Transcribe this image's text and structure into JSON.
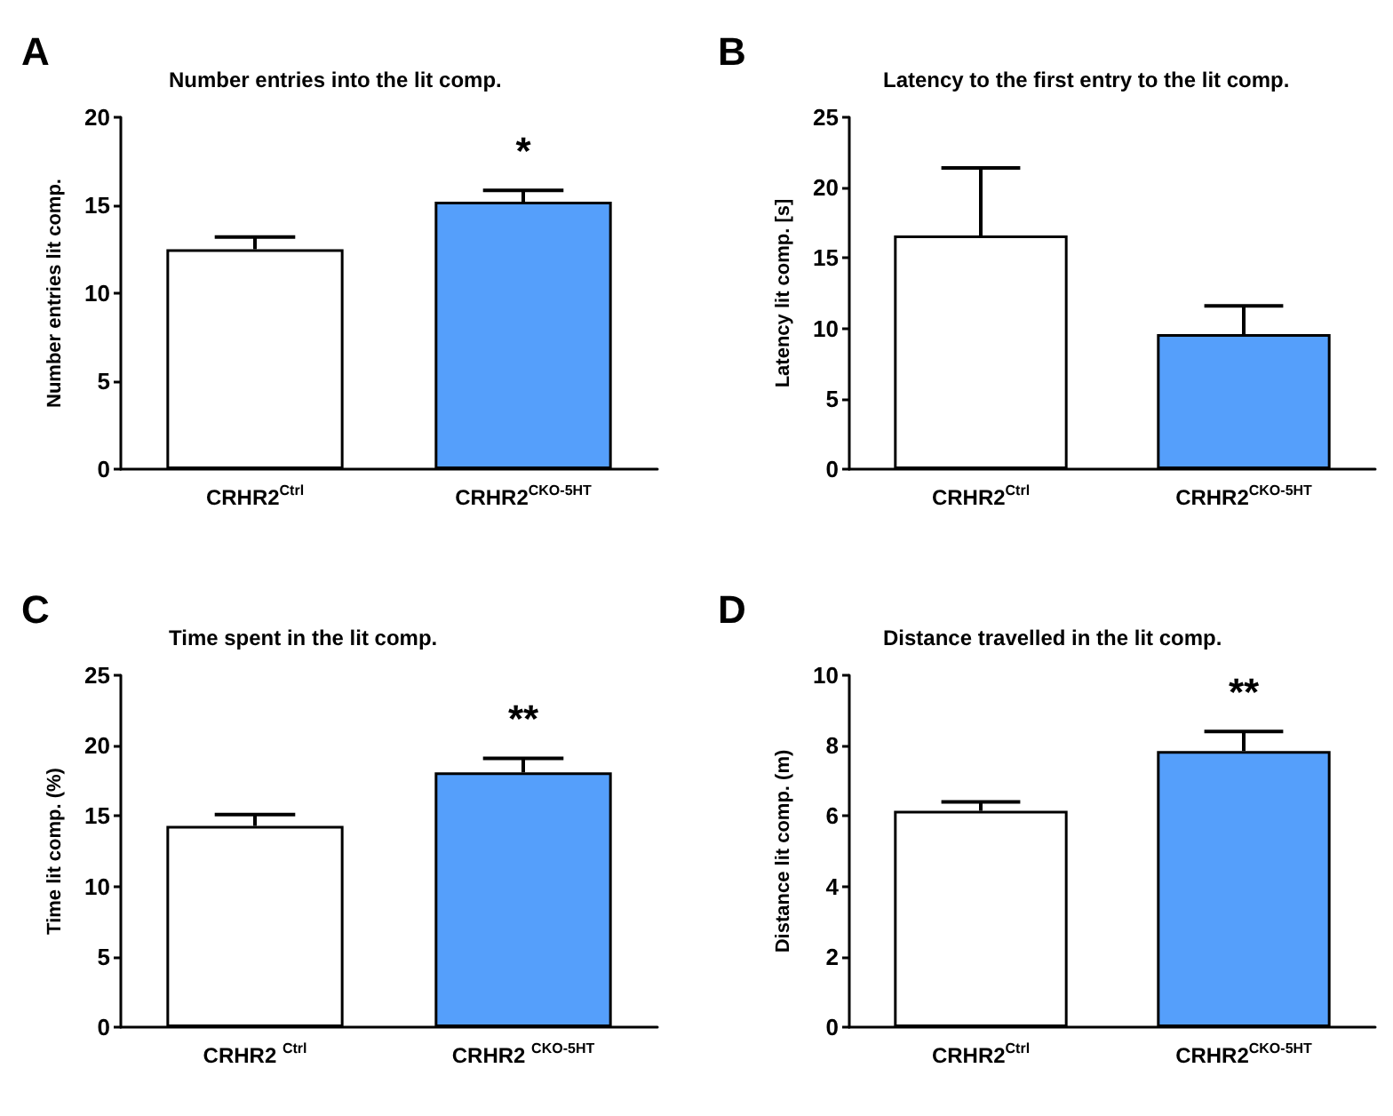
{
  "chart_data": [
    {
      "type": "bar",
      "title": "Number entries into the lit comp.",
      "ylabel": "Number entries lit comp.",
      "categories": [
        "CRHR2$^{Ctrl}$",
        "CRHR2$^{CKO-5HT}$"
      ],
      "values": [
        12.5,
        15.2
      ],
      "colors": [
        "#ffffff",
        "#559ffb"
      ],
      "errors": [
        0.7,
        0.65
      ],
      "ylim": [
        0,
        20
      ],
      "yticks": [
        0,
        5,
        10,
        15,
        20
      ],
      "grid": false,
      "annotations": [
        "A",
        "*"
      ]
    },
    {
      "type": "bar",
      "title": "Latency to the first entry to the lit comp.",
      "ylabel": "Latency lit comp. [s]",
      "categories": [
        "CRHR2$^{Ctrl}$",
        "CRHR2$^{CKO-5HT}$"
      ],
      "values": [
        16.6,
        9.6
      ],
      "colors": [
        "#ffffff",
        "#559ffb"
      ],
      "errors": [
        4.8,
        2.0
      ],
      "ylim": [
        0,
        25
      ],
      "yticks": [
        0,
        5,
        10,
        15,
        20,
        25
      ],
      "grid": false,
      "annotations": [
        "B"
      ]
    },
    {
      "type": "bar",
      "title": "Time spent in the lit comp.",
      "ylabel": "Time lit comp. (%)",
      "categories": [
        "CRHR2 $^{Ctrl}$",
        "CRHR2 $^{CKO-5HT}$"
      ],
      "values": [
        14.3,
        18.1
      ],
      "colors": [
        "#ffffff",
        "#559ffb"
      ],
      "errors": [
        0.8,
        1.0
      ],
      "ylim": [
        0,
        25
      ],
      "yticks": [
        0,
        5,
        10,
        15,
        20,
        25
      ],
      "grid": false,
      "annotations": [
        "C",
        "**"
      ]
    },
    {
      "type": "bar",
      "title": "Distance travelled in the lit comp.",
      "ylabel": "Distance lit comp. (m)",
      "categories": [
        "CRHR2$^{Ctrl}$",
        "CRHR2$^{CKO-5HT}$"
      ],
      "values": [
        6.15,
        7.85
      ],
      "colors": [
        "#ffffff",
        "#559ffb"
      ],
      "errors": [
        0.25,
        0.55
      ],
      "ylim": [
        0,
        10
      ],
      "yticks": [
        0,
        2,
        4,
        6,
        8,
        10
      ],
      "grid": false,
      "annotations": [
        "D",
        "**"
      ]
    }
  ]
}
